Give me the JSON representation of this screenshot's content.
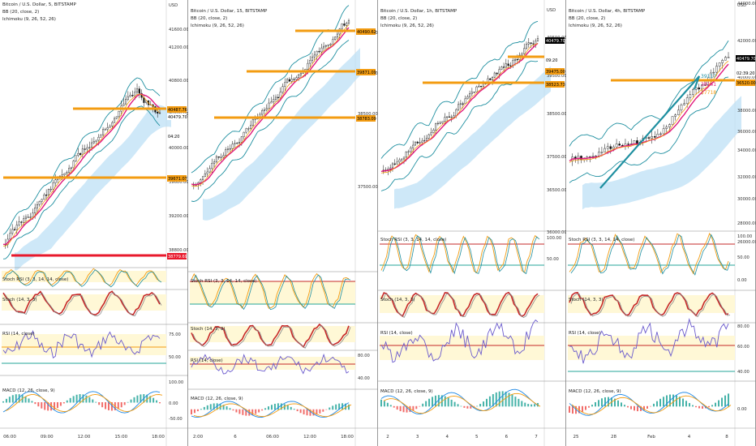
{
  "panels": [
    {
      "title": "Bitcoin / U.S. Dollar, 5, BITSTAMP",
      "ind1": "BB (20, close, 2)",
      "ind2": "Ichimoku (9, 26, 52, 26)",
      "currency": "USD",
      "price_ticks": [
        "41600.00",
        "41200.00",
        "40800.00",
        "40400.00",
        "40000.00",
        "39600.00",
        "39200.00",
        "38800.00"
      ],
      "price_tags": [
        "40487.76",
        "40479.70",
        "04:20",
        "39671.07",
        "38779.69"
      ],
      "rsi_label": "RSI (14, close)",
      "rsi_ticks": [
        "75.00",
        "50.00"
      ],
      "stoch_rsi_label": "Stoch RSI (3, 3, 14, 14, close)",
      "stoch_label": "Stoch (14, 3, 3)",
      "macd_label": "MACD (12, 26, close, 9)",
      "macd_ticks": [
        "100.00",
        "0.00",
        "-50.00"
      ],
      "time_ticks": [
        "06:00",
        "09:00",
        "12:00",
        "15:00",
        "18:00"
      ]
    },
    {
      "title": "Bitcoin / U.S. Dollar, 15, BITSTAMP",
      "ind1": "BB (20, close, 2)",
      "ind2": "Ichimoku (9, 26, 52, 26)",
      "price_ticks": [
        "40500.00",
        "39500.00",
        "38500.00",
        "37500.00"
      ],
      "price_tags": [
        "40490.62",
        "39871.09",
        "38783.09"
      ],
      "stoch_rsi_label": "Stoch RSI (3, 3, 14, 14, close)",
      "stoch_label": "Stoch (14, 3, 3)",
      "rsi_label": "RSI (14, close)",
      "macd_label": "MACD (12, 26, close, 9)",
      "rsi_ticks": [
        "80.00",
        "40.00"
      ],
      "time_ticks": [
        "2:00",
        "6",
        "06:00",
        "12:00",
        "18:00"
      ]
    },
    {
      "title": "Bitcoin / U.S. Dollar, 1h, BITSTAMP",
      "ind1": "BB (20, close, 2)",
      "ind2": "Ichimoku (9, 26, 52, 26)",
      "currency": "USD",
      "price_ticks": [
        "40500.00",
        "39500.00",
        "38500.00",
        "37500.00",
        "36500.00",
        "36000.00"
      ],
      "price_tags": [
        "40479.70",
        "09:20",
        "39475.00",
        "38523.73"
      ],
      "stoch_rsi_label": "Stoch RSI (3, 3, 14, 14, close)",
      "stoch_label": "Stoch (14, 3, 3)",
      "rsi_label": "RSI (14, close)",
      "macd_label": "MACD (12, 26, close, 9)",
      "stoch_ticks": [
        "100.00",
        "50.00"
      ],
      "time_ticks": [
        "2",
        "3",
        "4",
        "5",
        "6",
        "7"
      ]
    },
    {
      "title": "Bitcoin / U.S. Dollar, 4h, BITSTAMP",
      "ind1": "BB (20, close, 2)",
      "ind2": "Ichimoku (9, 26, 52, 26)",
      "currency": "USD",
      "price_ticks": [
        "44000.00",
        "42000.00",
        "40000.00",
        "38000.00",
        "36000.00",
        "34000.00",
        "32000.00",
        "30000.00",
        "28000.00",
        "26000.00"
      ],
      "price_tags": [
        "40479.70",
        "02:39:20",
        "36520.00"
      ],
      "level_labels": [
        "39117",
        "38141",
        "37718"
      ],
      "stoch_rsi_label": "Stoch RSI (3, 3, 14, 14, close)",
      "stoch_label": "Stoch (14, 3, 3)",
      "rsi_label": "RSI (14, close)",
      "macd_label": "MACD (12, 26, close, 9)",
      "stoch_ticks": [
        "100.00",
        "50.00",
        "0.00"
      ],
      "rsi_ticks": [
        "80.00",
        "60.00",
        "40.00"
      ],
      "macd_ticks": [
        "0.00"
      ],
      "time_ticks": [
        "25",
        "28",
        "Feb",
        "4",
        "8"
      ]
    }
  ],
  "colors": {
    "orange": "#f39c12",
    "red": "#e8192c",
    "teal": "#1e8fa0",
    "magenta": "#e0197d",
    "cloud": "#bde0f5",
    "candle": "#111111",
    "stoch_fill": "#fff8d6",
    "rsi_line": "#6a5acd",
    "macd_up": "#26a69a",
    "macd_dn": "#ef5350"
  }
}
